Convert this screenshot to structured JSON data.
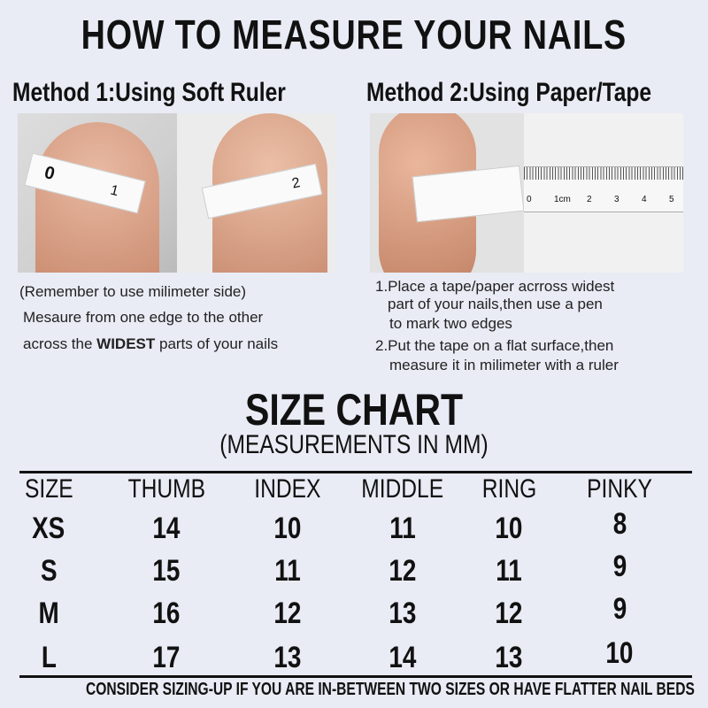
{
  "title": "HOW TO MEASURE YOUR NAILS",
  "method1": {
    "heading": "Method 1:Using Soft Ruler",
    "note": "(Remember to use milimeter side)",
    "line1": "Mesaure from one edge to the other",
    "line2_pre": "across the ",
    "line2_bold": "WIDEST",
    "line2_post": " parts of your nails",
    "tape_marks": [
      "0",
      "1",
      "2"
    ]
  },
  "method2": {
    "heading": "Method 2:Using Paper/Tape",
    "step1a": "1.Place a tape/paper acrross widest",
    "step1b": "part of your nails,then use a pen",
    "step1c": "to mark two edges",
    "step2a": "2.Put the tape on a flat surface,then",
    "step2b": "measure it in milimeter with a ruler",
    "ruler_labels": [
      "0",
      "1cm",
      "2",
      "3",
      "4",
      "5"
    ]
  },
  "size_chart": {
    "title": "SIZE CHART",
    "subtitle": "(MEASUREMENTS IN MM)",
    "headers": [
      "SIZE",
      "THUMB",
      "INDEX",
      "MIDDLE",
      "RING",
      "PINKY"
    ],
    "rows": [
      [
        "XS",
        "14",
        "10",
        "11",
        "10",
        "8"
      ],
      [
        "S",
        "15",
        "11",
        "12",
        "11",
        "9"
      ],
      [
        "M",
        "16",
        "12",
        "13",
        "12",
        "9"
      ],
      [
        "L",
        "17",
        "13",
        "14",
        "13",
        "10"
      ]
    ]
  },
  "footer": "CONSIDER SIZING-UP IF YOU ARE IN-BETWEEN TWO SIZES OR HAVE FLATTER NAIL BEDS"
}
